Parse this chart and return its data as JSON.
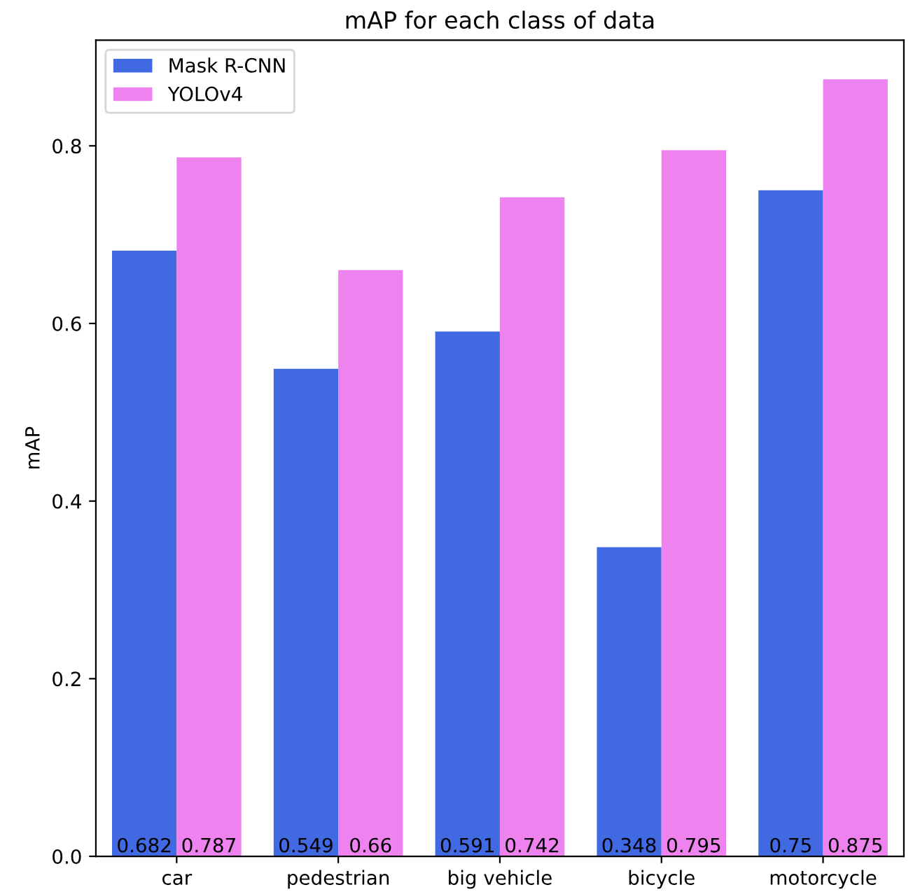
{
  "chart_data": {
    "type": "bar",
    "title": "mAP for each class of data",
    "ylabel": "mAP",
    "categories": [
      "car",
      "pedestrian",
      "big vehicle",
      "bicycle",
      "motorcycle"
    ],
    "series": [
      {
        "name": "Mask R-CNN",
        "color": "#4169e1",
        "values": [
          0.682,
          0.549,
          0.591,
          0.348,
          0.75
        ]
      },
      {
        "name": "YOLOv4",
        "color": "#ee82ee",
        "values": [
          0.787,
          0.66,
          0.742,
          0.795,
          0.875
        ]
      }
    ],
    "ylim": [
      0,
      0.919
    ],
    "yticks": [
      {
        "value": 0,
        "label": "0.0"
      },
      {
        "value": 0.2,
        "label": "0.2"
      },
      {
        "value": 0.4,
        "label": "0.4"
      },
      {
        "value": 0.6,
        "label": "0.6"
      },
      {
        "value": 0.8,
        "label": "0.8"
      }
    ],
    "data_labels": true,
    "legend": "top left",
    "grid": false
  }
}
